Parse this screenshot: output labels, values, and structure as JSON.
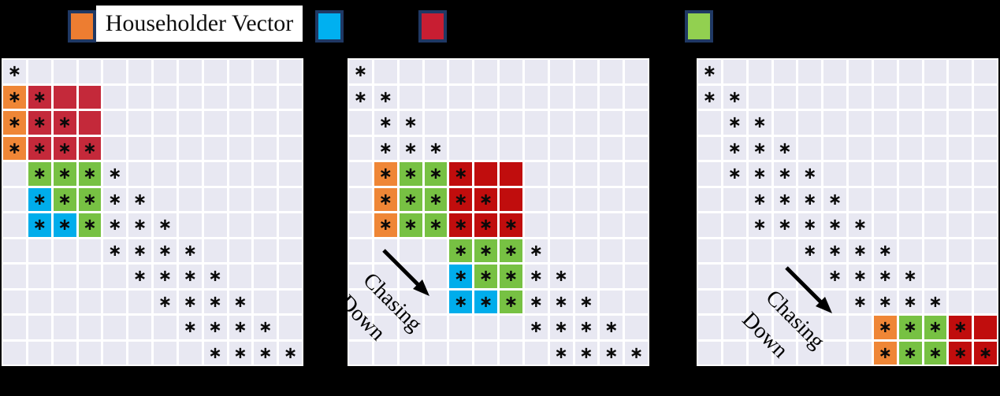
{
  "legend": {
    "items": [
      {
        "name": "householder-vector",
        "color": "#ED7D31",
        "label": "Householder Vector"
      },
      {
        "name": "blue-bulge",
        "color": "#00B0F0",
        "label": ""
      },
      {
        "name": "red-block",
        "color": "#C81E32",
        "label": ""
      },
      {
        "name": "green-block",
        "color": "#92D050",
        "label": ""
      }
    ],
    "swatch_border_color": "#1F3864"
  },
  "colors": {
    "background": "#000000",
    "cell_background": "#E8E8F2",
    "gridline": "#FFFFFF",
    "star": "#0A0A0A",
    "orange": "#EF8636",
    "blue": "#00ADEB",
    "green": "#77C143"
  },
  "star_char": "∗",
  "cell_legend": "o=orange+star, g=green+star, b=blue+star, r=red+star, R=red, *=plain star, .=empty",
  "panels": [
    {
      "name": "matrix-step-1",
      "red_color": "#C4293A",
      "rows": [
        "*...........",
        "orRR........",
        "orrR........",
        "orrr........",
        ".ggg*.......",
        ".bgg**......",
        ".bbg***.....",
        "....****....",
        ".....****...",
        "......****..",
        ".......****.",
        "........****"
      ],
      "annotation": null
    },
    {
      "name": "matrix-step-2",
      "red_color": "#C00D0D",
      "rows": [
        "*...........",
        "**..........",
        ".**.........",
        ".***........",
        ".oggrRR.....",
        ".oggrrR.....",
        ".oggrrr.....",
        "....ggg*....",
        "....bgg**...",
        "....bbg***..",
        ".......****.",
        "........****"
      ],
      "annotation": {
        "line1": "Chasing",
        "line2": "Down"
      }
    },
    {
      "name": "matrix-step-3",
      "red_color": "#C00D0D",
      "rows": [
        "*...........",
        "**..........",
        ".**.........",
        ".***........",
        ".****.......",
        "..****......",
        "..*****.....",
        "....****....",
        ".....****...",
        "......****..",
        ".......oggrR",
        ".......oggrr"
      ],
      "annotation": {
        "line1": "Chasing",
        "line2": "Down"
      }
    }
  ]
}
